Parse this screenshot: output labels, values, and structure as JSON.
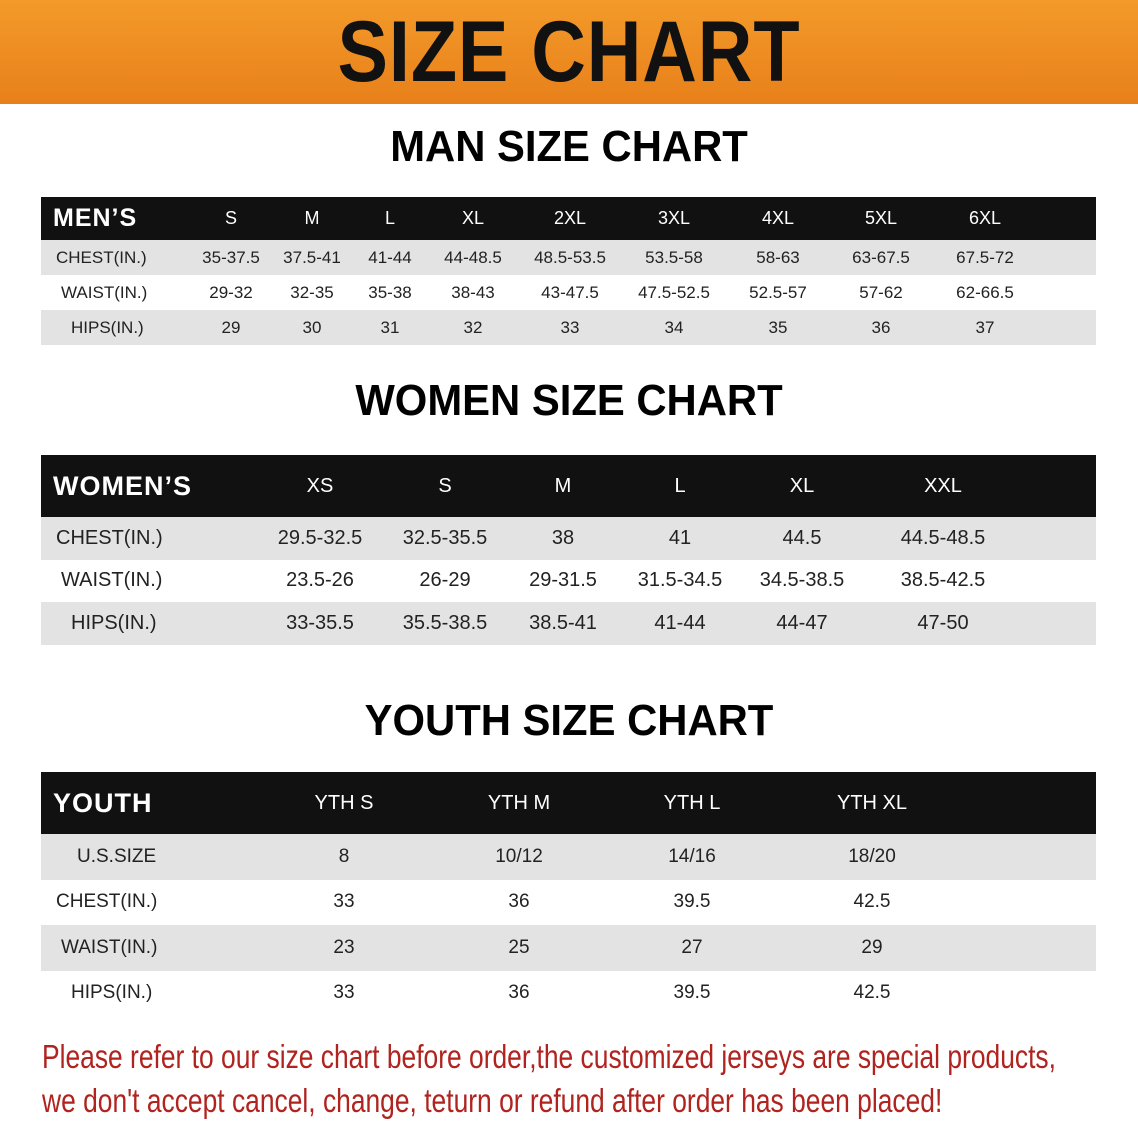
{
  "banner": "SIZE CHART",
  "men": {
    "title": "MAN SIZE CHART",
    "header": "MEN’S",
    "sizes": [
      "S",
      "M",
      "L",
      "XL",
      "2XL",
      "3XL",
      "4XL",
      "5XL",
      "6XL"
    ],
    "rows": [
      {
        "label": "CHEST(IN.)",
        "values": [
          "35-37.5",
          "37.5-41",
          "41-44",
          "44-48.5",
          "48.5-53.5",
          "53.5-58",
          "58-63",
          "63-67.5",
          "67.5-72"
        ]
      },
      {
        "label": "WAIST(IN.)",
        "values": [
          "29-32",
          "32-35",
          "35-38",
          "38-43",
          "43-47.5",
          "47.5-52.5",
          "52.5-57",
          "57-62",
          "62-66.5"
        ]
      },
      {
        "label": "HIPS(IN.)",
        "values": [
          "29",
          "30",
          "31",
          "32",
          "33",
          "34",
          "35",
          "36",
          "37"
        ]
      }
    ]
  },
  "women": {
    "title": "WOMEN SIZE CHART",
    "header": "WOMEN’S",
    "sizes": [
      "XS",
      "S",
      "M",
      "L",
      "XL",
      "XXL"
    ],
    "rows": [
      {
        "label": "CHEST(IN.)",
        "values": [
          "29.5-32.5",
          "32.5-35.5",
          "38",
          "41",
          "44.5",
          "44.5-48.5"
        ]
      },
      {
        "label": "WAIST(IN.)",
        "values": [
          "23.5-26",
          "26-29",
          "29-31.5",
          "31.5-34.5",
          "34.5-38.5",
          "38.5-42.5"
        ]
      },
      {
        "label": "HIPS(IN.)",
        "values": [
          "33-35.5",
          "35.5-38.5",
          "38.5-41",
          "41-44",
          "44-47",
          "47-50"
        ]
      }
    ]
  },
  "youth": {
    "title": "YOUTH SIZE CHART",
    "header": "YOUTH",
    "sizes": [
      "YTH S",
      "YTH M",
      "YTH L",
      "YTH XL"
    ],
    "rows": [
      {
        "label": "U.S.SIZE",
        "values": [
          "8",
          "10/12",
          "14/16",
          "18/20"
        ]
      },
      {
        "label": "CHEST(IN.)",
        "values": [
          "33",
          "36",
          "39.5",
          "42.5"
        ]
      },
      {
        "label": "WAIST(IN.)",
        "values": [
          "23",
          "25",
          "27",
          "29"
        ]
      },
      {
        "label": "HIPS(IN.)",
        "values": [
          "33",
          "36",
          "39.5",
          "42.5"
        ]
      }
    ]
  },
  "notice": [
    "Please refer to our size chart before order,the customized jerseys are special products,",
    "we don't accept cancel, change, teturn or refund after order has been placed!"
  ],
  "colors": {
    "banner": "#ee8a20",
    "header_bg": "#111111",
    "stripe": "#e3e3e3",
    "notice": "#b0231f"
  }
}
